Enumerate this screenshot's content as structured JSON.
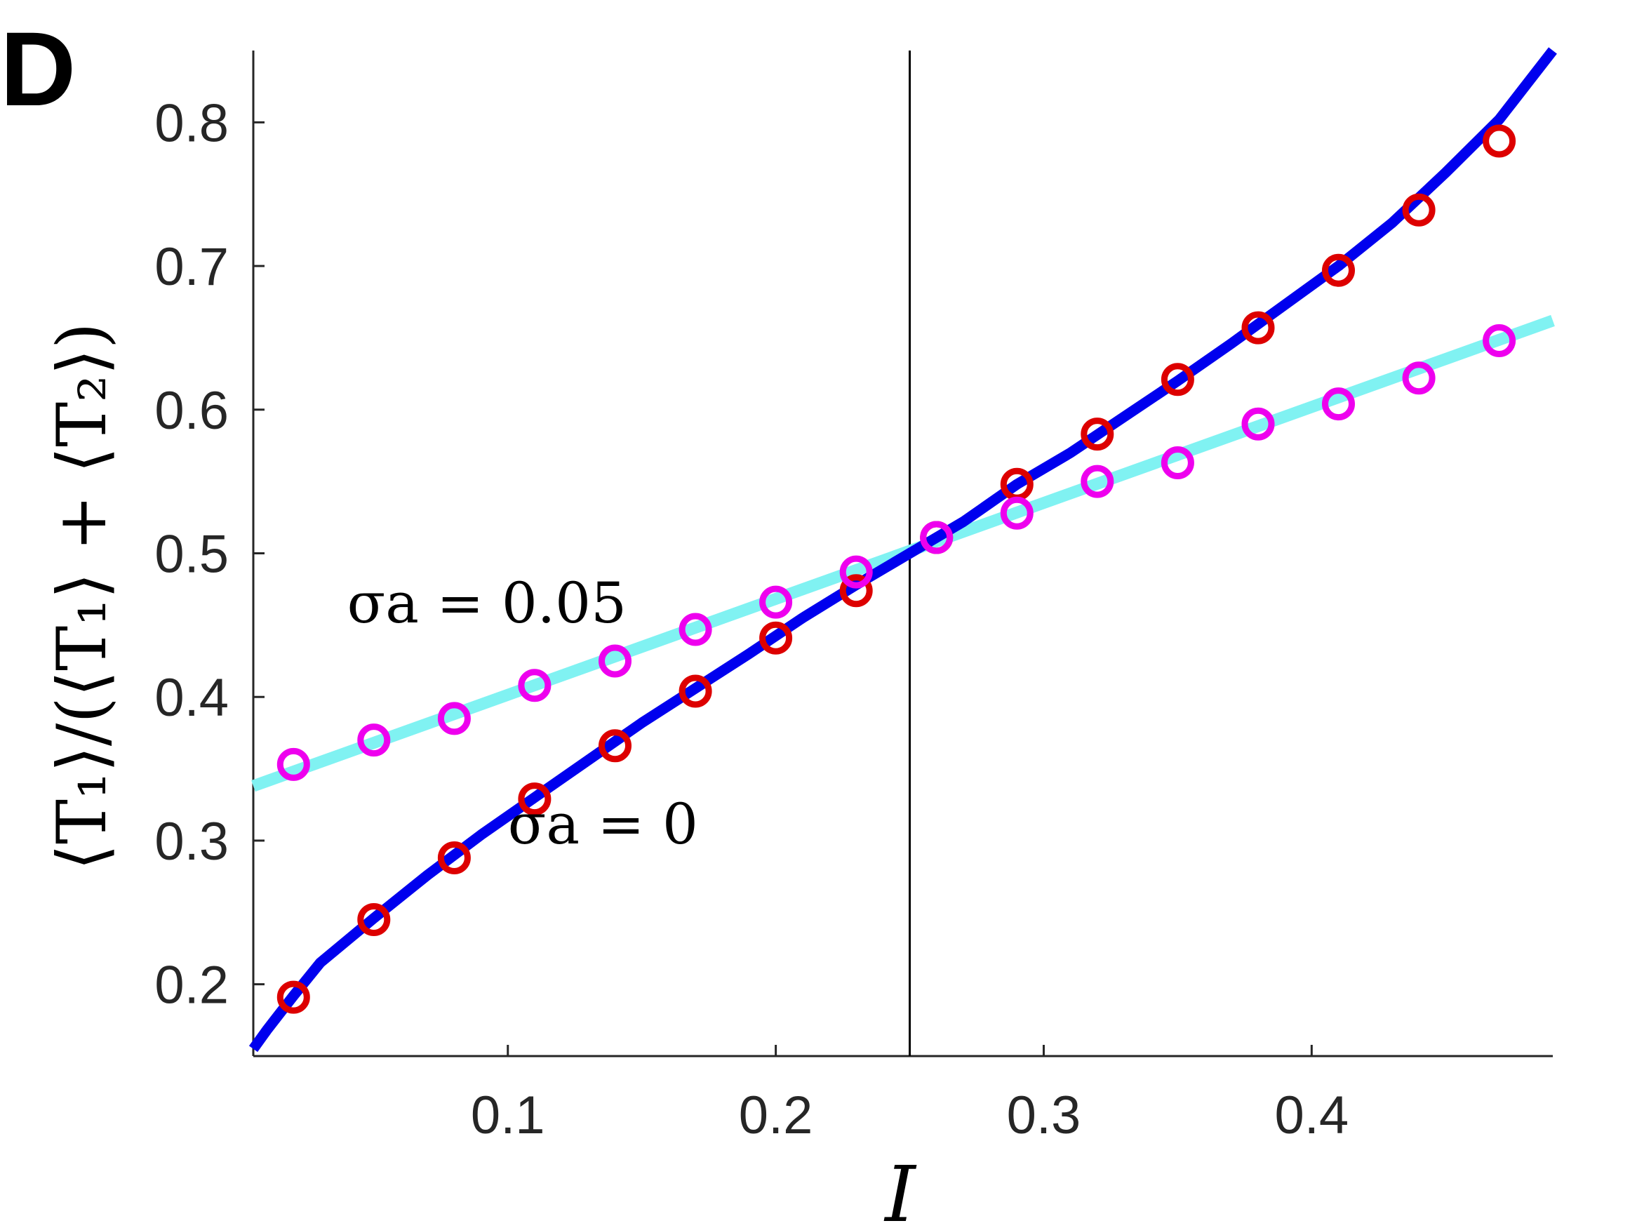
{
  "panel_label": "D",
  "chart_data": {
    "type": "line",
    "xlabel": "I",
    "ylabel": "⟨T₁⟩/(⟨T₁⟩ + ⟨T₂⟩)",
    "xlim": [
      0.005,
      0.49
    ],
    "ylim": [
      0.15,
      0.85
    ],
    "x_ticks": [
      0.1,
      0.2,
      0.3,
      0.4
    ],
    "x_tick_labels": [
      "0.1",
      "0.2",
      "0.3",
      "0.4"
    ],
    "y_ticks": [
      0.2,
      0.3,
      0.4,
      0.5,
      0.6,
      0.7,
      0.8
    ],
    "y_tick_labels": [
      "0.2",
      "0.3",
      "0.4",
      "0.5",
      "0.6",
      "0.7",
      "0.8"
    ],
    "vline_x": 0.25,
    "grid": false,
    "annotations": [
      {
        "text": "σa = 0.05",
        "x": 0.04,
        "y": 0.452
      },
      {
        "text": "σa = 0",
        "x": 0.1,
        "y": 0.298
      }
    ],
    "series": [
      {
        "kind": "line",
        "color": "#0000ee",
        "x": [
          0.005,
          0.01,
          0.02,
          0.03,
          0.05,
          0.07,
          0.09,
          0.11,
          0.13,
          0.15,
          0.17,
          0.19,
          0.21,
          0.23,
          0.25,
          0.27,
          0.29,
          0.31,
          0.33,
          0.35,
          0.37,
          0.39,
          0.41,
          0.43,
          0.45,
          0.47,
          0.49
        ],
        "values": [
          0.155,
          0.168,
          0.192,
          0.215,
          0.246,
          0.276,
          0.304,
          0.33,
          0.356,
          0.382,
          0.406,
          0.43,
          0.455,
          0.478,
          0.5,
          0.522,
          0.548,
          0.57,
          0.595,
          0.62,
          0.646,
          0.673,
          0.7,
          0.73,
          0.765,
          0.802,
          0.85
        ]
      },
      {
        "kind": "line",
        "color": "#80f2f2",
        "x": [
          0.005,
          0.49
        ],
        "values": [
          0.338,
          0.662
        ]
      },
      {
        "kind": "scatter",
        "color": "#dd0000",
        "x": [
          0.02,
          0.05,
          0.08,
          0.11,
          0.14,
          0.17,
          0.2,
          0.23,
          0.26,
          0.29,
          0.32,
          0.35,
          0.38,
          0.41,
          0.44,
          0.47
        ],
        "values": [
          0.191,
          0.245,
          0.288,
          0.329,
          0.366,
          0.404,
          0.441,
          0.474,
          0.511,
          0.548,
          0.583,
          0.621,
          0.657,
          0.697,
          0.739,
          0.787
        ]
      },
      {
        "kind": "scatter",
        "color": "#ee00ee",
        "x": [
          0.02,
          0.05,
          0.08,
          0.11,
          0.14,
          0.17,
          0.2,
          0.23,
          0.26,
          0.29,
          0.32,
          0.35,
          0.38,
          0.41,
          0.44,
          0.47
        ],
        "values": [
          0.353,
          0.37,
          0.385,
          0.408,
          0.425,
          0.447,
          0.466,
          0.487,
          0.511,
          0.528,
          0.55,
          0.563,
          0.59,
          0.604,
          0.622,
          0.648
        ]
      }
    ]
  }
}
